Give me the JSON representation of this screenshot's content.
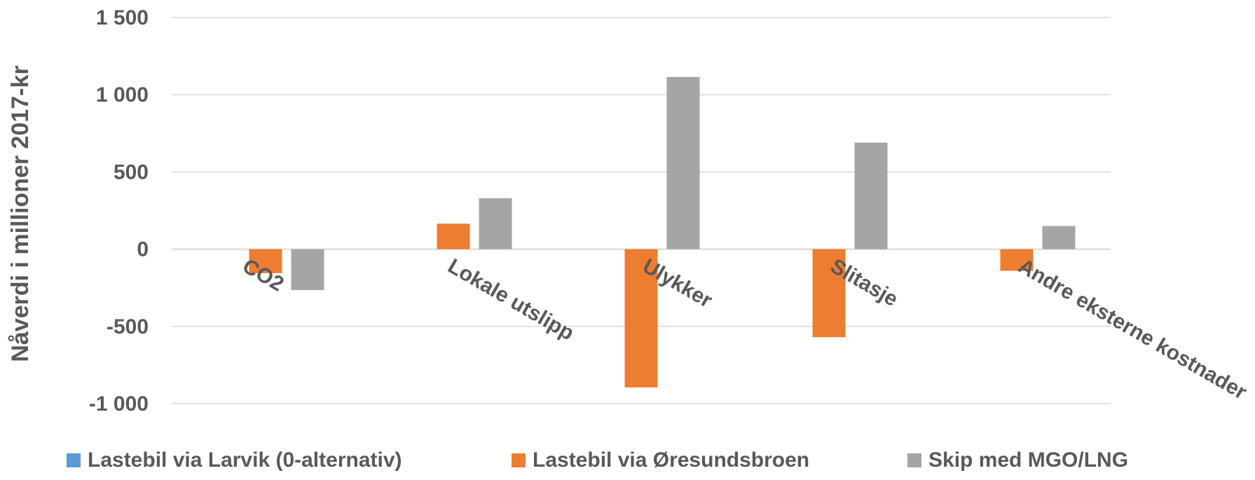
{
  "chart_data": {
    "type": "bar",
    "title": "",
    "xlabel": "",
    "ylabel": "Nåverdi i millioner 2017-kr",
    "ylim": [
      -1000,
      1500
    ],
    "yticks": [
      1500,
      1000,
      500,
      0,
      -500,
      -1000
    ],
    "ytick_labels": [
      "1 500",
      "1 000",
      "500",
      "0",
      "-500",
      "-1 000"
    ],
    "grid": true,
    "legend_position": "bottom",
    "categories": [
      "CO2",
      "Lokale utslipp",
      "Ulykker",
      "Slitasje",
      "Andre eksterne kostnader"
    ],
    "series": [
      {
        "name": "Lastebil via Larvik (0-alternativ)",
        "color": "#5B9BD5",
        "values": [
          0,
          0,
          0,
          0,
          0
        ]
      },
      {
        "name": "Lastebil via Øresundsbroen",
        "color": "#ED7D31",
        "values": [
          -155,
          165,
          -895,
          -570,
          -140
        ]
      },
      {
        "name": "Skip med MGO/LNG",
        "color": "#A5A5A5",
        "values": [
          -265,
          330,
          1115,
          690,
          150
        ]
      }
    ]
  }
}
